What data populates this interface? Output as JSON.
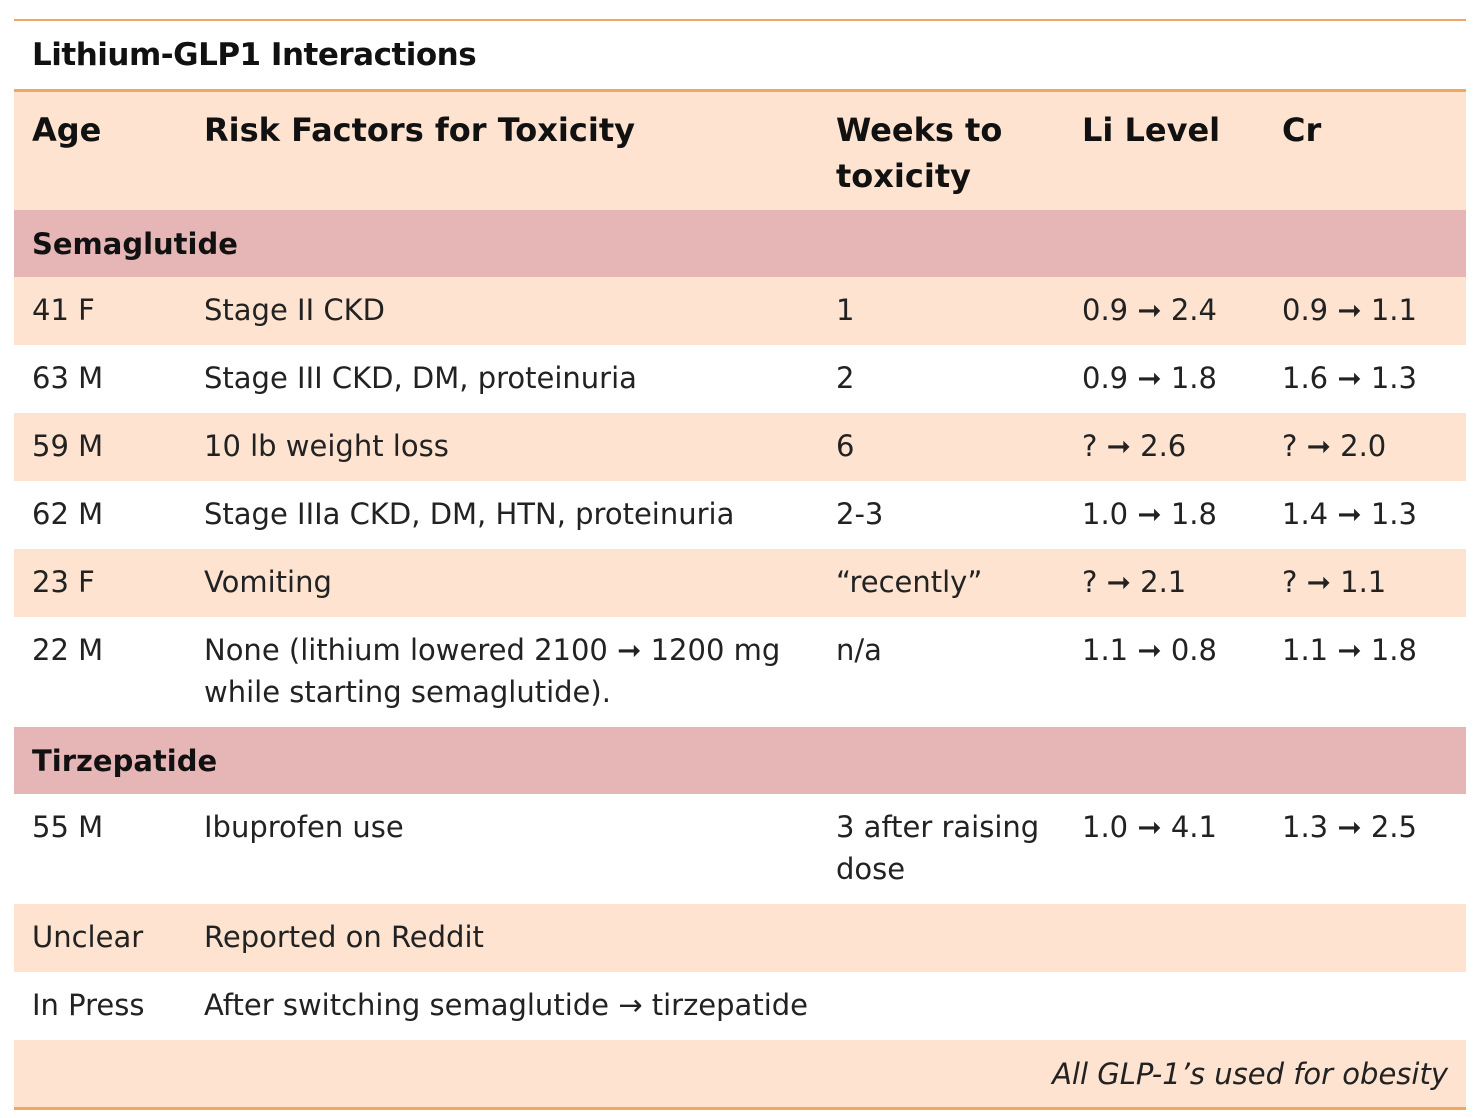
{
  "chart_data": {
    "type": "table",
    "title": "Lithium-GLP1 Interactions",
    "columns": [
      "Age",
      "Risk Factors for Toxicity",
      "Weeks to toxicity",
      "Li Level",
      "Cr"
    ],
    "groups": [
      {
        "name": "Semaglutide",
        "rows": [
          {
            "age": "41 F",
            "risk": "Stage II CKD",
            "weeks": "1",
            "li": "0.9 ➞ 2.4",
            "cr": "0.9 ➞ 1.1"
          },
          {
            "age": "63 M",
            "risk": "Stage III CKD, DM, proteinuria",
            "weeks": "2",
            "li": "0.9 ➞ 1.8",
            "cr": "1.6 ➞ 1.3"
          },
          {
            "age": "59 M",
            "risk": "10 lb weight loss",
            "weeks": "6",
            "li": "? ➞ 2.6",
            "cr": "? ➞ 2.0"
          },
          {
            "age": "62 M",
            "risk": "Stage IIIa CKD, DM, HTN, proteinuria",
            "weeks": "2-3",
            "li": "1.0 ➞ 1.8",
            "cr": "1.4 ➞ 1.3"
          },
          {
            "age": "23 F",
            "risk": "Vomiting",
            "weeks": "“recently”",
            "li": "? ➞ 2.1",
            "cr": "? ➞ 1.1"
          },
          {
            "age": "22 M",
            "risk": "None (lithium lowered 2100 ➞ 1200 mg while starting semaglutide).",
            "weeks": "n/a",
            "li": "1.1 ➞ 0.8",
            "cr": "1.1 ➞ 1.8"
          }
        ]
      },
      {
        "name": "Tirzepatide",
        "rows": [
          {
            "age": "55 M",
            "risk": "Ibuprofen use",
            "weeks": "3 after raising dose",
            "li": "1.0 ➞ 4.1",
            "cr": "1.3 ➞ 2.5"
          },
          {
            "age": "Unclear",
            "risk": "Reported on Reddit",
            "weeks": "",
            "li": "",
            "cr": ""
          },
          {
            "age": "In Press",
            "risk": "After switching semaglutide → tirzepatide",
            "weeks": "",
            "li": "",
            "cr": ""
          }
        ]
      }
    ],
    "footnote": "All GLP-1’s used for obesity"
  },
  "colors": {
    "rule": "#f0a766",
    "shaded_row": "#fde3d0",
    "group_row": "#e6b5b5"
  }
}
